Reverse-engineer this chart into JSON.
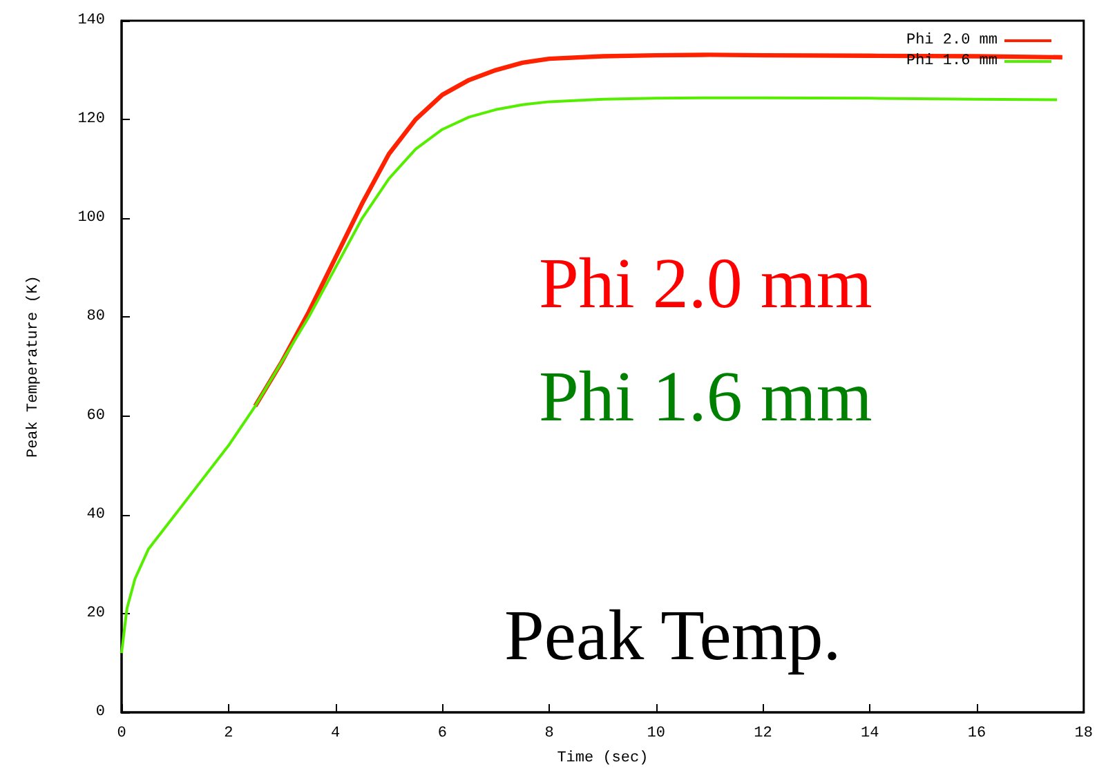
{
  "chart_data": {
    "type": "line",
    "xlabel": "Time (sec)",
    "ylabel": "Peak Temperature (K)",
    "xlim": [
      0,
      18
    ],
    "xticks": [
      0,
      2,
      4,
      6,
      8,
      10,
      12,
      14,
      16,
      18
    ],
    "ylim": [
      0,
      140
    ],
    "yticks": [
      0,
      20,
      40,
      60,
      80,
      100,
      120,
      140
    ],
    "grid": false,
    "legend": "top right",
    "marker": "none",
    "line_style": "solid",
    "annotations": [
      "Phi 2.0 mm",
      "Phi 1.6 mm",
      "Peak Temp."
    ],
    "series": [
      {
        "name": "Phi 2.0 mm",
        "color": "#ff2200",
        "x": [
          2.5,
          3,
          3.5,
          4,
          4.5,
          5,
          5.5,
          6,
          6.5,
          7,
          7.5,
          8,
          9,
          10,
          11,
          12,
          14,
          16,
          17.6
        ],
        "values": [
          62,
          71,
          81,
          92,
          103,
          113,
          120,
          125,
          128,
          130,
          131.5,
          132.3,
          132.8,
          133,
          133.1,
          133,
          132.9,
          132.8,
          132.6
        ]
      },
      {
        "name": "Phi 1.6 mm",
        "color": "#55ee00",
        "x": [
          0,
          0.1,
          0.25,
          0.5,
          1,
          1.5,
          2,
          2.5,
          3,
          3.5,
          4,
          4.5,
          5,
          5.5,
          6,
          6.5,
          7,
          7.5,
          8,
          9,
          10,
          11,
          12,
          14,
          16,
          17.5
        ],
        "values": [
          12,
          21,
          27,
          33,
          40,
          47,
          54,
          62,
          71,
          80,
          90,
          100,
          108,
          114,
          118,
          120.5,
          122,
          123,
          123.6,
          124.1,
          124.3,
          124.4,
          124.4,
          124.3,
          124.1,
          124
        ]
      }
    ]
  }
}
